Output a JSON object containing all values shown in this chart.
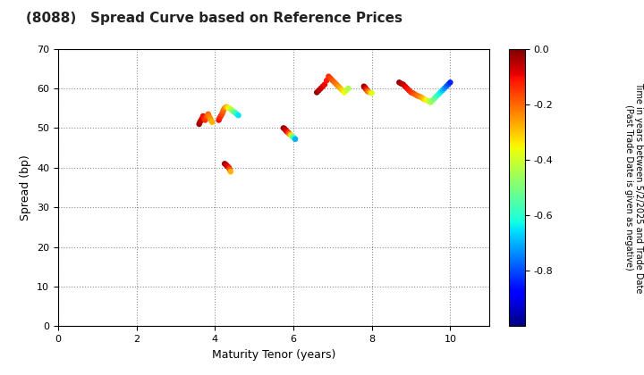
{
  "title": "(8088)   Spread Curve based on Reference Prices",
  "xlabel": "Maturity Tenor (years)",
  "ylabel": "Spread (bp)",
  "colorbar_label": "Time in years between 5/2/2025 and Trade Date\n(Past Trade Date is given as negative)",
  "xlim": [
    0,
    11
  ],
  "ylim": [
    0,
    70
  ],
  "xticks": [
    0,
    2,
    4,
    6,
    8,
    10
  ],
  "yticks": [
    0,
    10,
    20,
    30,
    40,
    50,
    60,
    70
  ],
  "cmap": "jet",
  "vmin": -1.0,
  "vmax": 0.0,
  "points": {
    "tenors": [
      3.6,
      3.62,
      3.65,
      3.68,
      3.7,
      3.72,
      3.75,
      3.78,
      3.8,
      3.83,
      3.85,
      3.88,
      3.9,
      3.93,
      4.1,
      4.12,
      4.15,
      4.18,
      4.2,
      4.22,
      4.25,
      4.28,
      4.3,
      4.33,
      4.36,
      4.4,
      4.43,
      4.46,
      4.5,
      4.53,
      4.56,
      4.6,
      4.25,
      4.28,
      4.3,
      4.33,
      4.36,
      4.38,
      4.4,
      5.75,
      5.78,
      5.8,
      5.83,
      5.85,
      5.88,
      5.9,
      5.93,
      5.96,
      5.98,
      6.02,
      6.05,
      6.6,
      6.65,
      6.7,
      6.75,
      6.8,
      6.85,
      6.9,
      6.95,
      7.0,
      7.05,
      7.1,
      7.15,
      7.2,
      7.25,
      7.3,
      7.35,
      7.4,
      7.8,
      7.82,
      7.84,
      7.86,
      7.88,
      7.9,
      7.95,
      8.0,
      8.7,
      8.75,
      8.8,
      8.85,
      8.9,
      8.95,
      9.0,
      9.05,
      9.1,
      9.15,
      9.2,
      9.25,
      9.3,
      9.35,
      9.4,
      9.45,
      9.5,
      9.55,
      9.6,
      9.65,
      9.7,
      9.75,
      9.8,
      9.85,
      9.9,
      9.95,
      10.0
    ],
    "spreads": [
      51.0,
      51.5,
      52.0,
      52.5,
      53.0,
      52.5,
      52.0,
      52.5,
      53.0,
      53.5,
      53.0,
      52.5,
      52.0,
      51.5,
      52.0,
      52.5,
      53.0,
      53.5,
      54.0,
      54.5,
      55.0,
      55.2,
      55.3,
      55.2,
      55.0,
      54.8,
      54.5,
      54.2,
      54.0,
      53.8,
      53.5,
      53.2,
      41.0,
      40.8,
      40.5,
      40.3,
      40.0,
      39.5,
      39.0,
      50.0,
      49.8,
      49.5,
      49.2,
      49.0,
      48.8,
      48.5,
      48.3,
      48.0,
      47.8,
      47.5,
      47.2,
      59.0,
      59.5,
      60.0,
      60.5,
      61.0,
      62.0,
      63.0,
      62.5,
      62.0,
      61.5,
      61.0,
      60.5,
      60.0,
      59.5,
      59.0,
      59.5,
      60.0,
      60.5,
      60.3,
      60.0,
      59.8,
      59.5,
      59.2,
      59.0,
      58.8,
      61.5,
      61.2,
      61.0,
      60.5,
      60.0,
      59.5,
      59.0,
      58.8,
      58.5,
      58.2,
      58.0,
      57.8,
      57.5,
      57.2,
      57.0,
      56.8,
      56.5,
      57.0,
      57.5,
      58.0,
      58.5,
      59.0,
      59.5,
      60.0,
      60.5,
      61.0,
      61.5
    ],
    "times": [
      -0.02,
      -0.04,
      -0.06,
      -0.08,
      -0.1,
      -0.12,
      -0.14,
      -0.16,
      -0.18,
      -0.2,
      -0.22,
      -0.24,
      -0.26,
      -0.28,
      -0.1,
      -0.12,
      -0.14,
      -0.16,
      -0.18,
      -0.2,
      -0.22,
      -0.25,
      -0.28,
      -0.32,
      -0.36,
      -0.4,
      -0.44,
      -0.48,
      -0.52,
      -0.56,
      -0.6,
      -0.65,
      -0.02,
      -0.04,
      -0.06,
      -0.08,
      -0.12,
      -0.18,
      -0.28,
      -0.02,
      -0.04,
      -0.06,
      -0.08,
      -0.1,
      -0.15,
      -0.2,
      -0.3,
      -0.4,
      -0.5,
      -0.6,
      -0.7,
      -0.02,
      -0.04,
      -0.06,
      -0.08,
      -0.1,
      -0.12,
      -0.14,
      -0.16,
      -0.18,
      -0.2,
      -0.22,
      -0.25,
      -0.28,
      -0.32,
      -0.36,
      -0.4,
      -0.44,
      -0.02,
      -0.04,
      -0.06,
      -0.1,
      -0.15,
      -0.2,
      -0.28,
      -0.38,
      -0.02,
      -0.04,
      -0.06,
      -0.08,
      -0.1,
      -0.12,
      -0.14,
      -0.16,
      -0.18,
      -0.2,
      -0.22,
      -0.25,
      -0.28,
      -0.32,
      -0.36,
      -0.4,
      -0.44,
      -0.48,
      -0.52,
      -0.56,
      -0.6,
      -0.64,
      -0.68,
      -0.72,
      -0.76,
      -0.8,
      -0.84
    ]
  }
}
